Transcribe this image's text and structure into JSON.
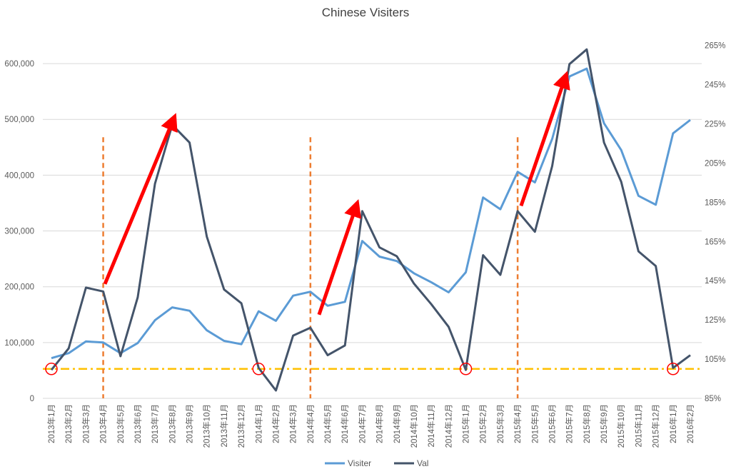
{
  "chart_data": {
    "type": "line",
    "title": "Chinese Visiters",
    "categories": [
      "2013年1月",
      "2013年2月",
      "2013年3月",
      "2013年4月",
      "2013年5月",
      "2013年6月",
      "2013年7月",
      "2013年8月",
      "2013年9月",
      "2013年10月",
      "2013年11月",
      "2013年12月",
      "2014年1月",
      "2014年2月",
      "2014年3月",
      "2014年4月",
      "2014年5月",
      "2014年6月",
      "2014年7月",
      "2014年8月",
      "2014年9月",
      "2014年10月",
      "2014年11月",
      "2014年12月",
      "2015年1月",
      "2015年2月",
      "2015年3月",
      "2015年4月",
      "2015年5月",
      "2015年6月",
      "2015年7月",
      "2015年8月",
      "2015年9月",
      "2015年10月",
      "2015年11月",
      "2015年12月",
      "2016年1月",
      "2016年2月"
    ],
    "series": [
      {
        "name": "Visiter",
        "axis": "left",
        "color": "#5b9bd5",
        "values": [
          72000,
          81000,
          102000,
          100000,
          81000,
          99000,
          140000,
          163000,
          157000,
          122000,
          103000,
          97000,
          156000,
          139000,
          184000,
          191000,
          166000,
          173000,
          282000,
          254000,
          246000,
          224000,
          208000,
          190000,
          226000,
          360000,
          339000,
          406000,
          387000,
          465000,
          577000,
          591000,
          493000,
          445000,
          363000,
          347000,
          475000,
          499000
        ]
      },
      {
        "name": "Val",
        "axis": "right",
        "color": "#44546a",
        "values": [
          0.995,
          1.105,
          1.415,
          1.395,
          1.065,
          1.365,
          1.945,
          2.245,
          2.155,
          1.675,
          1.405,
          1.335,
          1.005,
          0.89,
          1.17,
          1.21,
          1.07,
          1.12,
          1.805,
          1.62,
          1.575,
          1.435,
          1.33,
          1.215,
          0.995,
          1.58,
          1.48,
          1.805,
          1.7,
          2.035,
          2.555,
          2.63,
          2.155,
          1.955,
          1.6,
          1.525,
          1.005,
          1.07
        ]
      }
    ],
    "y_left": {
      "min": 0,
      "max": 650000,
      "ticks": [
        0,
        100000,
        200000,
        300000,
        400000,
        500000,
        600000
      ],
      "tick_labels": [
        "0",
        "100,000",
        "200,000",
        "300,000",
        "400,000",
        "500,000",
        "600,000"
      ]
    },
    "y_right": {
      "min": 0.85,
      "max": 2.7,
      "ticks": [
        0.85,
        1.05,
        1.25,
        1.45,
        1.65,
        1.85,
        2.05,
        2.25,
        2.45,
        2.65
      ],
      "tick_labels": [
        "85%",
        "105%",
        "125%",
        "145%",
        "165%",
        "185%",
        "205%",
        "225%",
        "245%",
        "265%"
      ]
    },
    "grid": true,
    "legend_position": "bottom",
    "annotations": {
      "baseline_right_value": 1.0,
      "baseline_color": "#ffc000",
      "dashed_lines": {
        "color": "#ed7d31",
        "at_categories": [
          3,
          15,
          27
        ],
        "top_left_value": 468000,
        "top_right_value": 2.78
      },
      "arrows": {
        "color": "#ff0000",
        "items": [
          {
            "from_category": 3.1,
            "from_left_value": 205000,
            "to_category": 7.0,
            "to_left_value": 495000
          },
          {
            "from_category": 15.5,
            "from_left_value": 150000,
            "to_category": 17.6,
            "to_left_value": 340000
          },
          {
            "from_category": 27.2,
            "from_left_value": 345000,
            "to_category": 29.7,
            "to_left_value": 570000
          }
        ]
      },
      "circles": {
        "color": "#ff0000",
        "at_categories": [
          0,
          12,
          24,
          36
        ]
      }
    }
  }
}
